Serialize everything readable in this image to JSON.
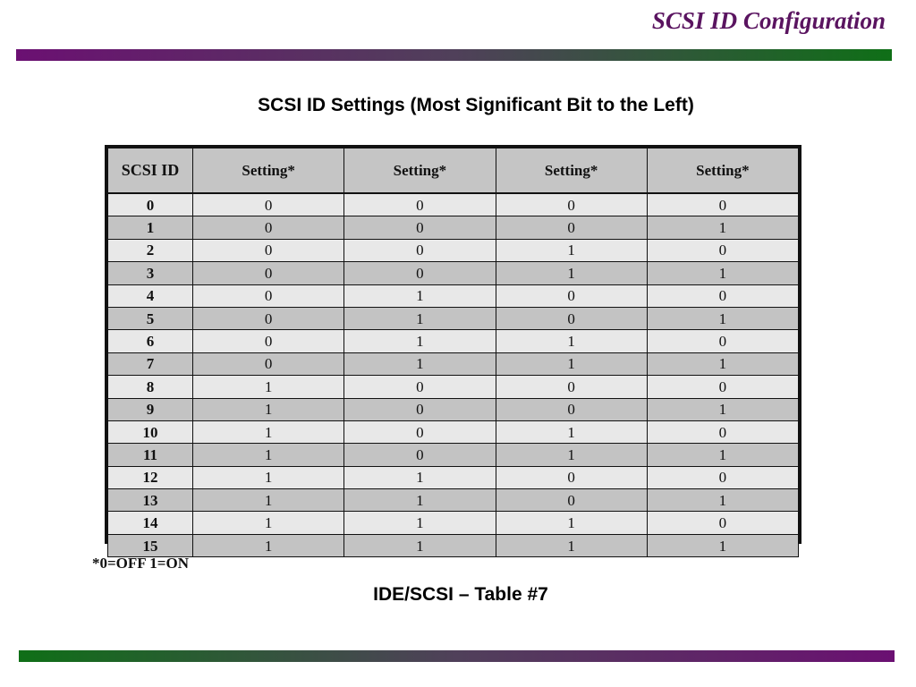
{
  "slide": {
    "title": "SCSI ID Configuration"
  },
  "table": {
    "heading": "SCSI ID Settings (Most Significant Bit to the Left)",
    "headers": [
      "SCSI ID",
      "Setting*",
      "Setting*",
      "Setting*",
      "Setting*"
    ],
    "rows": [
      [
        "0",
        "0",
        "0",
        "0",
        "0"
      ],
      [
        "1",
        "0",
        "0",
        "0",
        "1"
      ],
      [
        "2",
        "0",
        "0",
        "1",
        "0"
      ],
      [
        "3",
        "0",
        "0",
        "1",
        "1"
      ],
      [
        "4",
        "0",
        "1",
        "0",
        "0"
      ],
      [
        "5",
        "0",
        "1",
        "0",
        "1"
      ],
      [
        "6",
        "0",
        "1",
        "1",
        "0"
      ],
      [
        "7",
        "0",
        "1",
        "1",
        "1"
      ],
      [
        "8",
        "1",
        "0",
        "0",
        "0"
      ],
      [
        "9",
        "1",
        "0",
        "0",
        "1"
      ],
      [
        "10",
        "1",
        "0",
        "1",
        "0"
      ],
      [
        "11",
        "1",
        "0",
        "1",
        "1"
      ],
      [
        "12",
        "1",
        "1",
        "0",
        "0"
      ],
      [
        "13",
        "1",
        "1",
        "0",
        "1"
      ],
      [
        "14",
        "1",
        "1",
        "1",
        "0"
      ],
      [
        "15",
        "1",
        "1",
        "1",
        "1"
      ]
    ],
    "footnote": "*0=OFF 1=ON",
    "caption": "IDE/SCSI – Table #7"
  },
  "colors": {
    "title": "#5a1460",
    "bar_purple": "#6b1072",
    "bar_green": "#0f6f17",
    "header_bg": "#c5c5c5",
    "row_light": "#e8e8e8",
    "row_dark": "#c3c3c3"
  }
}
